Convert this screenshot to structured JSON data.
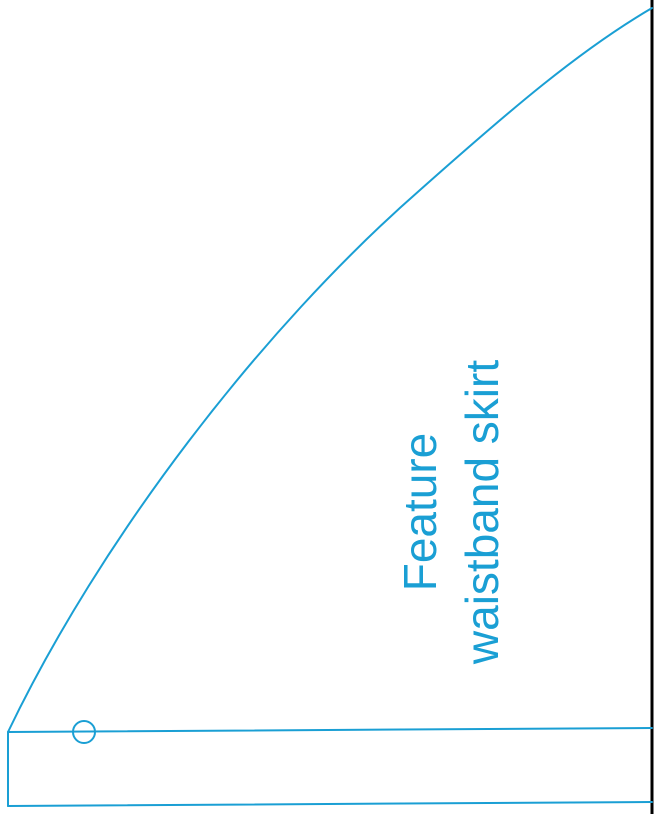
{
  "pattern": {
    "label_line_1": "Feature",
    "label_line_2": "waistband skirt",
    "line_color": "#1a9fd4",
    "edge_color": "#000000"
  }
}
